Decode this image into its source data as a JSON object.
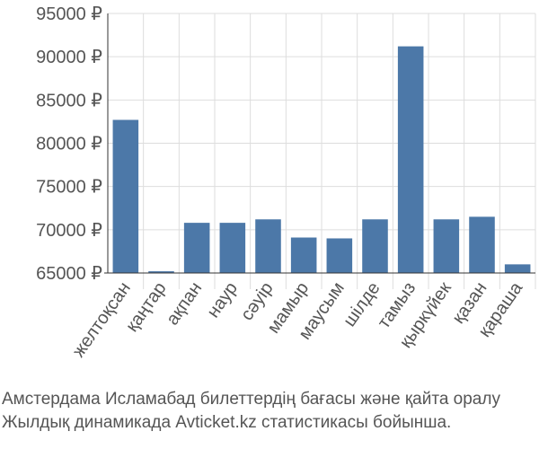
{
  "chart_data": {
    "type": "bar",
    "categories": [
      "желтоқсан",
      "қаңтар",
      "ақпан",
      "наур",
      "сәуір",
      "мамыр",
      "маусым",
      "шілде",
      "тамыз",
      "қыркүйек",
      "қазан",
      "қараша"
    ],
    "values": [
      82700,
      65200,
      70800,
      70800,
      71200,
      69100,
      69000,
      71200,
      91200,
      71200,
      71500,
      66000
    ],
    "ylim": [
      65000,
      95000
    ],
    "yticks": [
      65000,
      70000,
      75000,
      80000,
      85000,
      90000,
      95000
    ],
    "ytick_labels": [
      "65000 ₽",
      "70000 ₽",
      "75000 ₽",
      "80000 ₽",
      "85000 ₽",
      "90000 ₽",
      "95000 ₽"
    ],
    "grid": true,
    "bar_color": "#4c78a8",
    "grid_color": "#dddddd"
  },
  "caption": {
    "line1": "Амстердама Исламабад билеттердің бағасы және қайта оралу",
    "line2": "Жылдық динамикада Avticket.kz статистикасы бойынша."
  }
}
